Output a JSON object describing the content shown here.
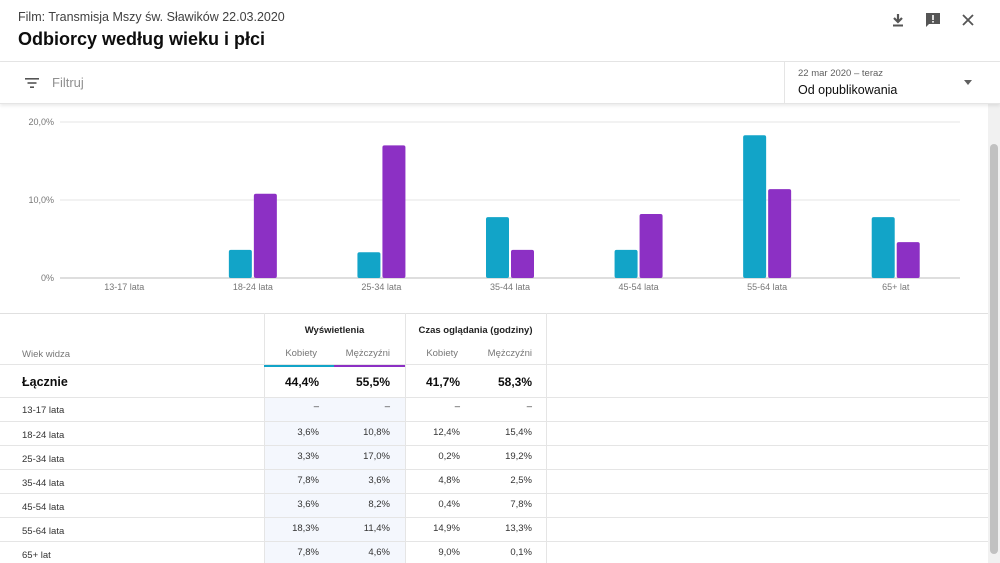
{
  "header": {
    "film_label": "Film: Transmisja Mszy św. Sławików 22.03.2020",
    "title": "Odbiorcy według wieku i płci",
    "icons": [
      "download-icon",
      "feedback-icon",
      "close-icon"
    ]
  },
  "filter": {
    "placeholder": "Filtruj",
    "date_range": "22 mar 2020 – teraz",
    "date_option": "Od opublikowania"
  },
  "colors": {
    "female": "#12a4c8",
    "male": "#8c30c4",
    "shade": "#f4f7fd"
  },
  "chart_data": {
    "type": "bar",
    "categories": [
      "13-17 lata",
      "18-24 lata",
      "25-34 lata",
      "35-44 lata",
      "45-54 lata",
      "55-64 lata",
      "65+ lat"
    ],
    "series": [
      {
        "name": "Kobiety",
        "values": [
          0,
          3.6,
          3.3,
          7.8,
          3.6,
          18.3,
          7.8
        ]
      },
      {
        "name": "Mężczyźni",
        "values": [
          0,
          10.8,
          17.0,
          3.6,
          8.2,
          11.4,
          4.6
        ]
      }
    ],
    "ytick_labels": [
      "0%",
      "10,0%",
      "20,0%"
    ],
    "ylim": [
      0,
      20
    ],
    "grid": true
  },
  "table": {
    "row_header": "Wiek widza",
    "groups": [
      "Wyświetlenia",
      "Czas oglądania (godziny)"
    ],
    "subheaders": [
      "Kobiety",
      "Mężczyźni",
      "Kobiety",
      "Mężczyźni"
    ],
    "total": {
      "label": "Łącznie",
      "values": [
        "44,4%",
        "55,5%",
        "41,7%",
        "58,3%"
      ]
    },
    "rows": [
      {
        "label": "13-17 lata",
        "values": [
          "–",
          "–",
          "–",
          "–"
        ]
      },
      {
        "label": "18-24 lata",
        "values": [
          "3,6%",
          "10,8%",
          "12,4%",
          "15,4%"
        ]
      },
      {
        "label": "25-34 lata",
        "values": [
          "3,3%",
          "17,0%",
          "0,2%",
          "19,2%"
        ]
      },
      {
        "label": "35-44 lata",
        "values": [
          "7,8%",
          "3,6%",
          "4,8%",
          "2,5%"
        ]
      },
      {
        "label": "45-54 lata",
        "values": [
          "3,6%",
          "8,2%",
          "0,4%",
          "7,8%"
        ]
      },
      {
        "label": "55-64 lata",
        "values": [
          "18,3%",
          "11,4%",
          "14,9%",
          "13,3%"
        ]
      },
      {
        "label": "65+ lat",
        "values": [
          "7,8%",
          "4,6%",
          "9,0%",
          "0,1%"
        ]
      }
    ]
  }
}
